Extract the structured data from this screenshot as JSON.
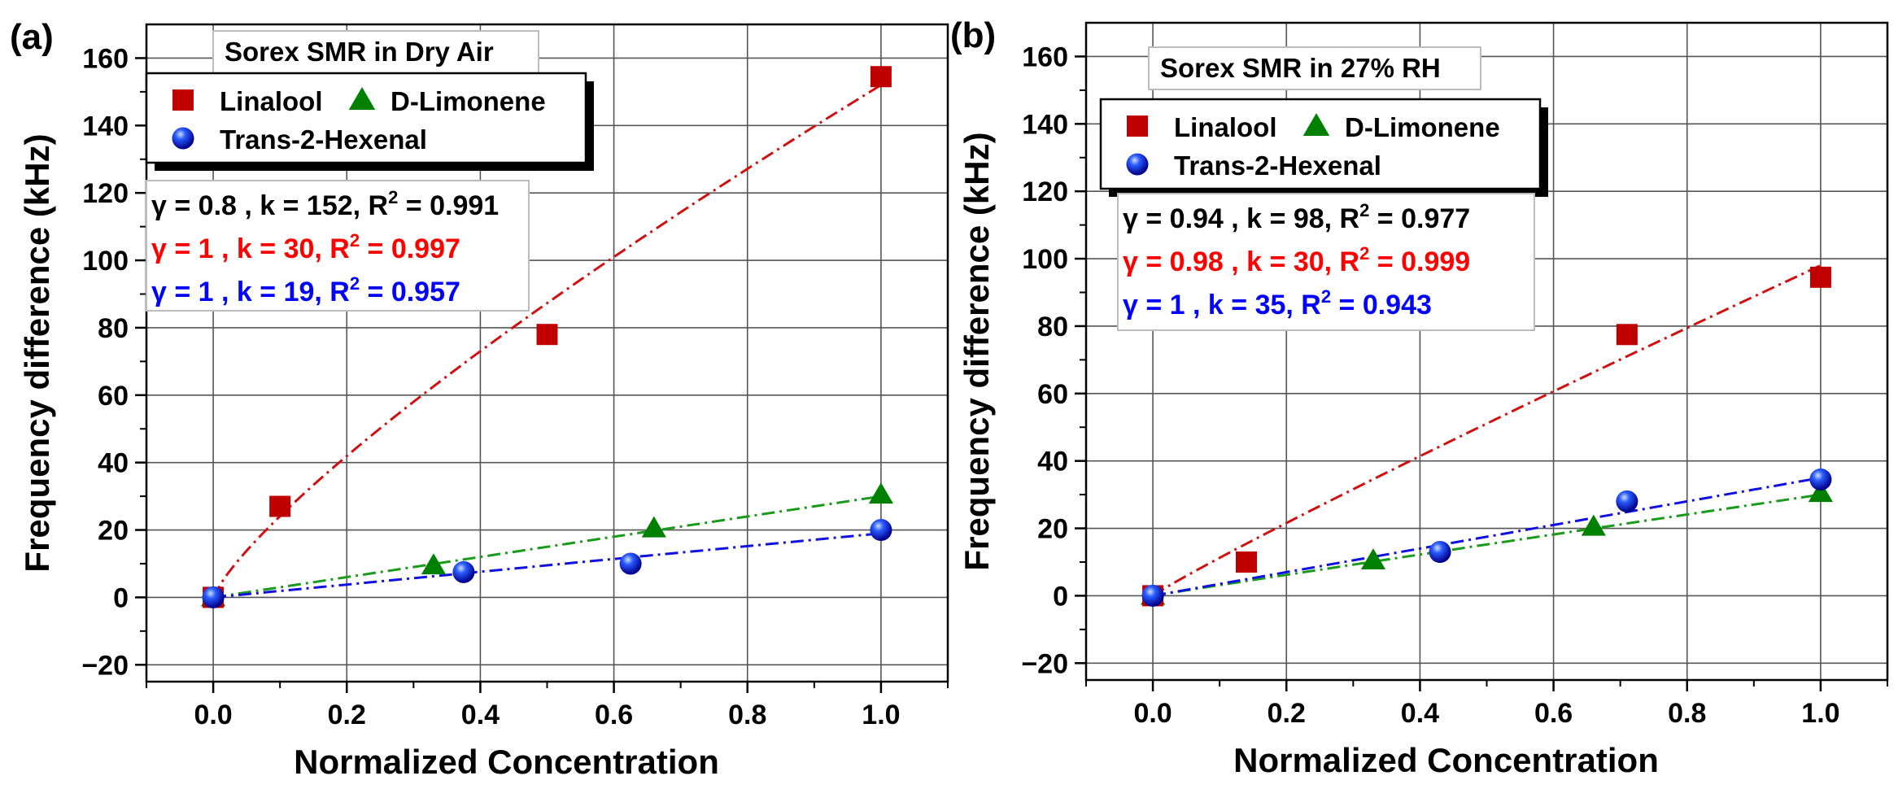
{
  "colors": {
    "linalool": "#c00000",
    "limonene": "#008000",
    "hexenal": "#0000ff",
    "fit_linalool": "#d01010",
    "fit_limonene": "#1a9a1a",
    "fit_hexenal": "#1010e0",
    "param_black": "#000000",
    "param_red": "#ff0000",
    "param_blue": "#0000ff"
  },
  "chart_data": [
    {
      "type": "scatter",
      "panel_label": "(a)",
      "title": "Sorex SMR in Dry Air",
      "xlabel": "Normalized Concentration",
      "ylabel": "Frequency difference (kHz)",
      "xlim": [
        -0.1,
        1.1
      ],
      "ylim": [
        -25,
        170
      ],
      "xticks": [
        "0.0",
        "0.2",
        "0.4",
        "0.6",
        "0.8",
        "1.0"
      ],
      "yticks": [
        "−20",
        "0",
        "20",
        "40",
        "60",
        "80",
        "100",
        "120",
        "140",
        "160"
      ],
      "xtick_values": [
        0,
        0.2,
        0.4,
        0.6,
        0.8,
        1.0
      ],
      "ytick_values": [
        -20,
        0,
        20,
        40,
        60,
        80,
        100,
        120,
        140,
        160
      ],
      "legend": [
        "Linalool",
        "D-Limonene",
        "Trans-2-Hexenal"
      ],
      "series": [
        {
          "name": "Linalool",
          "marker": "square",
          "x": [
            0.0,
            0.1,
            0.5,
            1.0
          ],
          "y": [
            0.0,
            27,
            78,
            154.5
          ],
          "fit": {
            "gamma": 0.8,
            "k": 152
          }
        },
        {
          "name": "D-Limonene",
          "marker": "triangle",
          "x": [
            0.0,
            0.33,
            0.66,
            1.0
          ],
          "y": [
            0.0,
            9.5,
            20.5,
            30.5
          ],
          "fit": {
            "gamma": 1,
            "k": 30
          }
        },
        {
          "name": "Trans-2-Hexenal",
          "marker": "sphere",
          "x": [
            0.0,
            0.375,
            0.625,
            1.0
          ],
          "y": [
            0.0,
            7.5,
            10,
            20
          ],
          "fit": {
            "gamma": 1,
            "k": 19
          }
        }
      ],
      "fit_lines": [
        "γ = 0.8 , k = 152, R² = 0.991",
        "γ = 1 , k = 30, R² = 0.997",
        "γ = 1 , k = 19, R² = 0.957"
      ]
    },
    {
      "type": "scatter",
      "panel_label": "(b)",
      "title": "Sorex SMR in 27% RH",
      "xlabel": "Normalized Concentration",
      "ylabel": "Frequency difference (kHz)",
      "xlim": [
        -0.1,
        1.1
      ],
      "ylim": [
        -25,
        170
      ],
      "xticks": [
        "0.0",
        "0.2",
        "0.4",
        "0.6",
        "0.8",
        "1.0"
      ],
      "yticks": [
        "−20",
        "0",
        "20",
        "40",
        "60",
        "80",
        "100",
        "120",
        "140",
        "160"
      ],
      "xtick_values": [
        0,
        0.2,
        0.4,
        0.6,
        0.8,
        1.0
      ],
      "ytick_values": [
        -20,
        0,
        20,
        40,
        60,
        80,
        100,
        120,
        140,
        160
      ],
      "legend": [
        "Linalool",
        "D-Limonene",
        "Trans-2-Hexenal"
      ],
      "series": [
        {
          "name": "Linalool",
          "marker": "square",
          "x": [
            0.0,
            0.14,
            0.71,
            1.0
          ],
          "y": [
            0.0,
            10,
            77.5,
            94.5
          ],
          "fit": {
            "gamma": 0.94,
            "k": 98
          }
        },
        {
          "name": "D-Limonene",
          "marker": "triangle",
          "x": [
            0.0,
            0.33,
            0.66,
            1.0
          ],
          "y": [
            0.0,
            10.5,
            20.5,
            30.5
          ],
          "fit": {
            "gamma": 0.98,
            "k": 30
          }
        },
        {
          "name": "Trans-2-Hexenal",
          "marker": "sphere",
          "x": [
            0.0,
            0.43,
            0.71,
            1.0
          ],
          "y": [
            0.0,
            13,
            28,
            34.5
          ],
          "fit": {
            "gamma": 1,
            "k": 35
          }
        }
      ],
      "fit_lines": [
        "γ = 0.94 , k = 98, R² = 0.977",
        "γ = 0.98 , k = 30, R² = 0.999",
        "γ = 1 , k = 35, R² = 0.943"
      ]
    }
  ]
}
